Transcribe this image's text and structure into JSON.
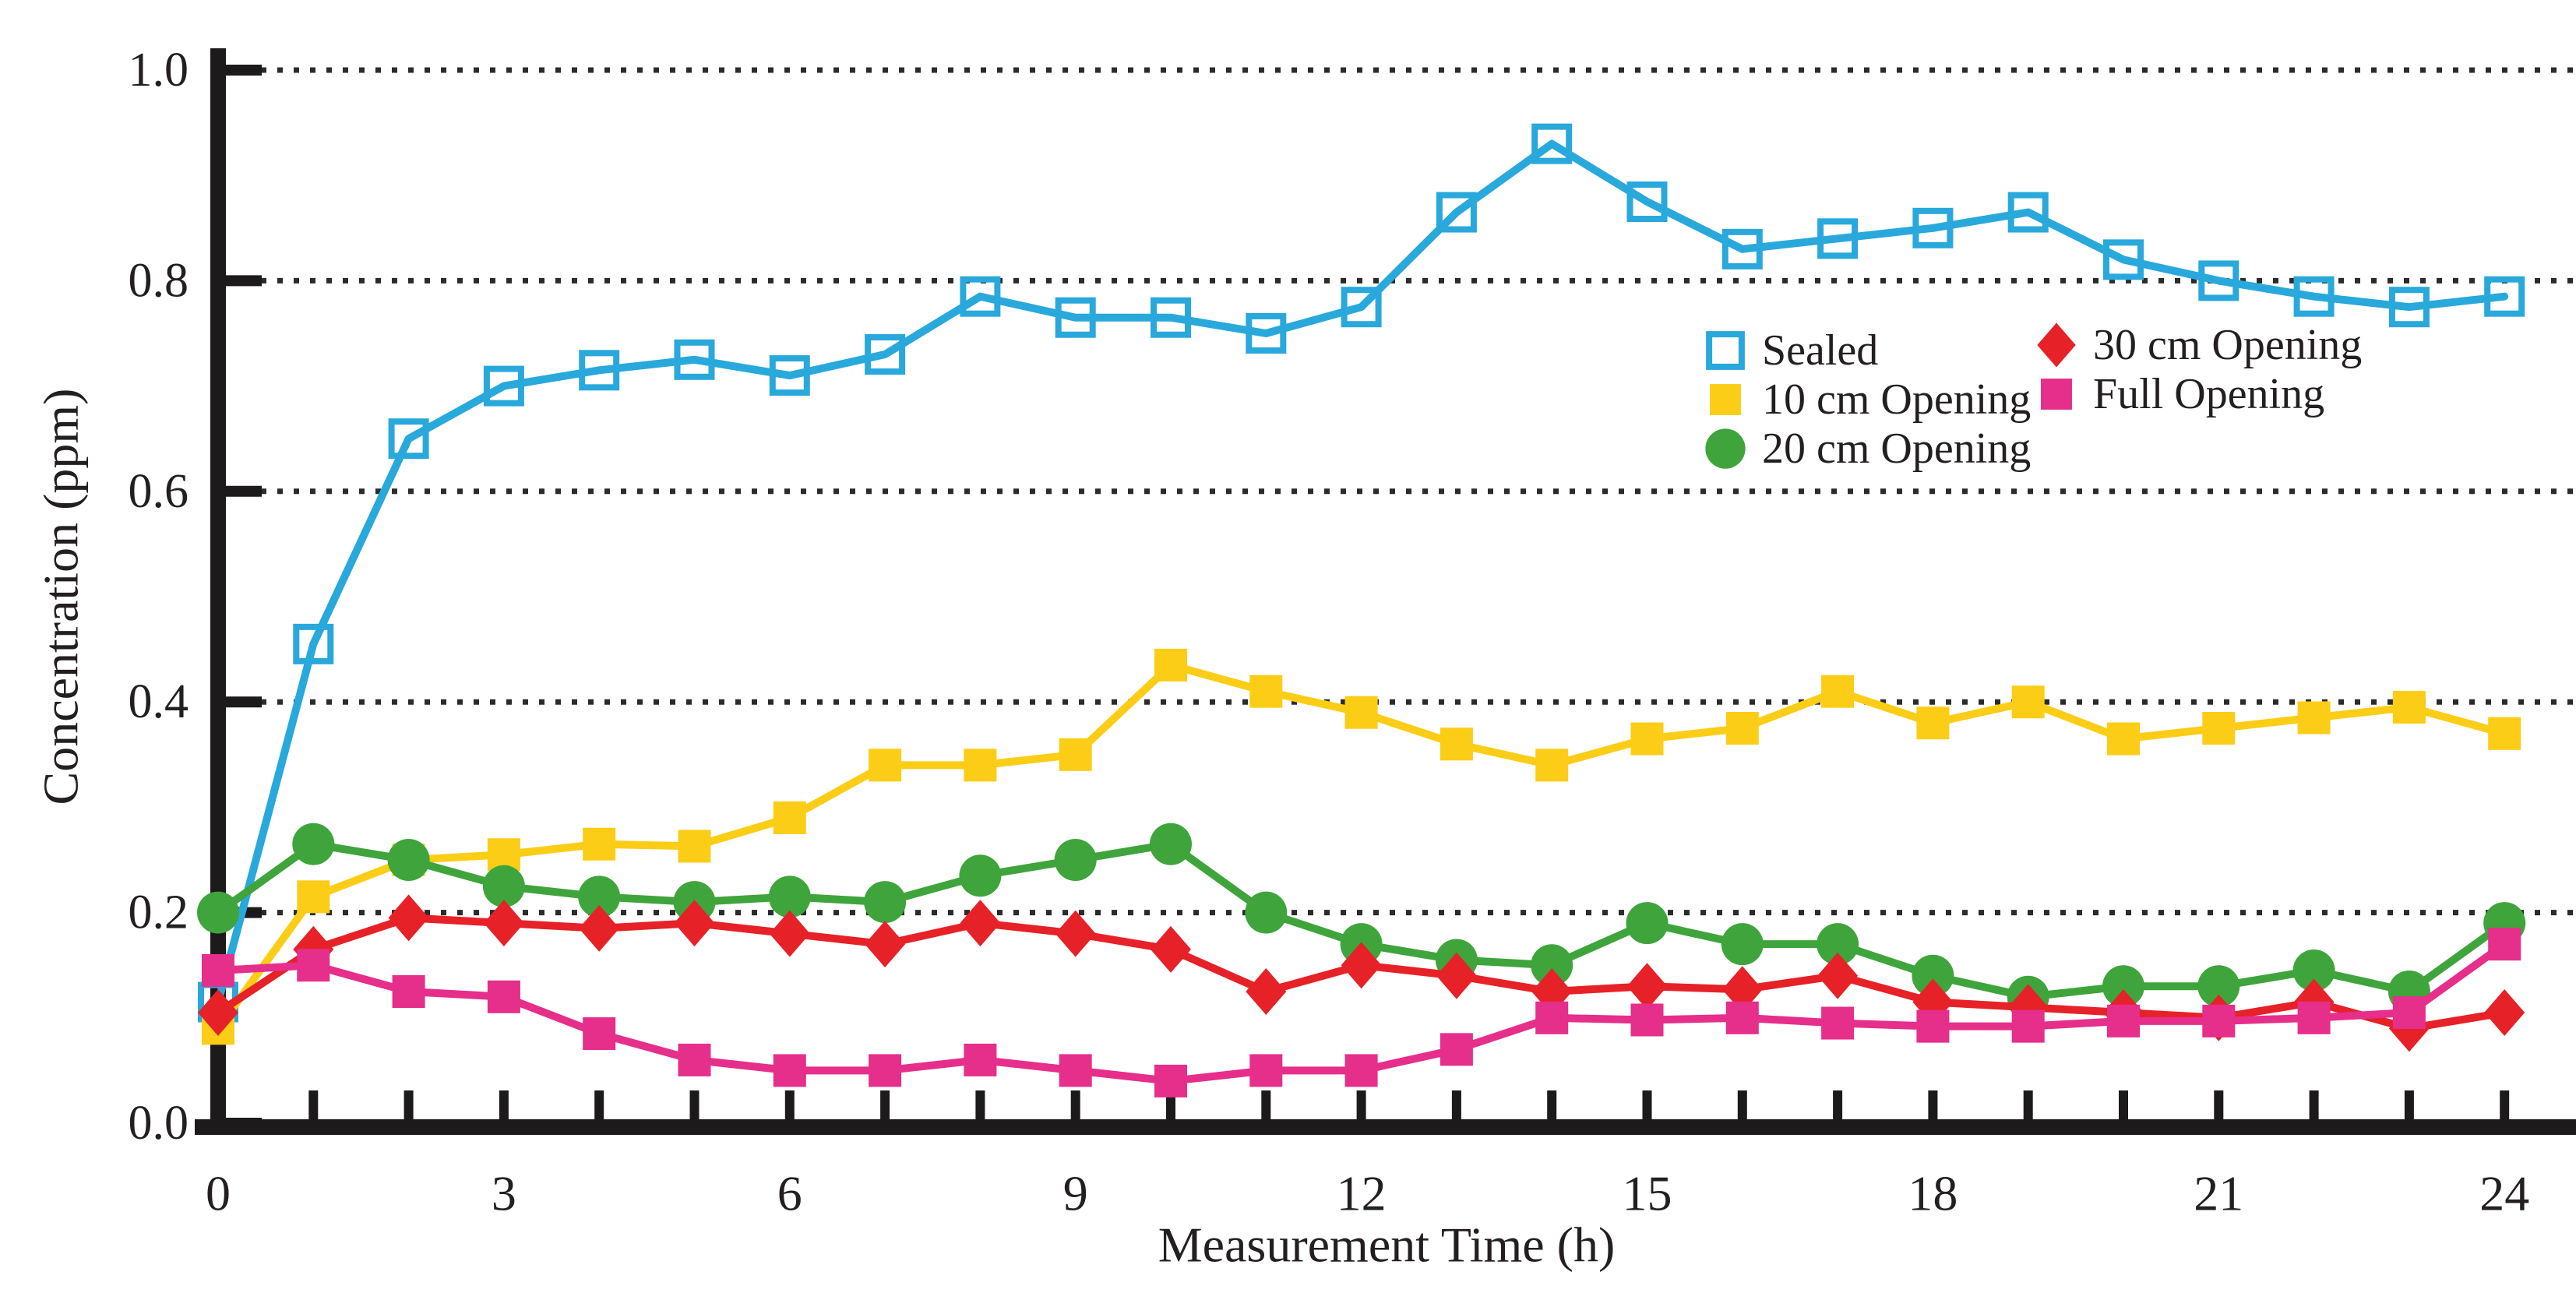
{
  "figure": {
    "background": "#ffffff",
    "axis_color": "#1C1A1B",
    "gridline_color": "#2B2B2B",
    "text_color": "#231F20"
  },
  "chart_data": {
    "type": "line",
    "title": "",
    "xlabel": "Measurement Time (h)",
    "ylabel": "Concentration (ppm)",
    "xlim": [
      0,
      24
    ],
    "ylim": [
      0.0,
      1.0
    ],
    "x_labeled_ticks": [
      0,
      3,
      6,
      9,
      12,
      15,
      18,
      21,
      24
    ],
    "x_minor_tick_step": 1,
    "y_ticks": [
      0.0,
      0.2,
      0.4,
      0.6,
      0.8,
      1.0
    ],
    "y_tick_labels": [
      "0.0",
      "0.2",
      "0.4",
      "0.6",
      "0.8",
      "1.0"
    ],
    "grid": "horizontal-dotted",
    "legend_position": "inside-upper-right",
    "x": [
      0,
      1,
      2,
      3,
      4,
      5,
      6,
      7,
      8,
      9,
      10,
      11,
      12,
      13,
      14,
      15,
      16,
      17,
      18,
      19,
      20,
      21,
      22,
      23,
      24
    ],
    "series": [
      {
        "name": "Sealed",
        "marker": "open-square",
        "color": "#29A8DC",
        "values": [
          0.115,
          0.455,
          0.65,
          0.7,
          0.715,
          0.725,
          0.71,
          0.73,
          0.785,
          0.765,
          0.765,
          0.75,
          0.775,
          0.865,
          0.93,
          0.875,
          0.83,
          0.84,
          0.85,
          0.865,
          0.82,
          0.8,
          0.785,
          0.775,
          0.785
        ]
      },
      {
        "name": "10 cm Opening",
        "marker": "square",
        "color": "#FBCD16",
        "values": [
          0.09,
          0.215,
          0.25,
          0.255,
          0.265,
          0.263,
          0.29,
          0.34,
          0.34,
          0.35,
          0.435,
          0.41,
          0.39,
          0.36,
          0.34,
          0.365,
          0.375,
          0.41,
          0.38,
          0.4,
          0.365,
          0.375,
          0.385,
          0.395,
          0.37
        ]
      },
      {
        "name": "20 cm Opening",
        "marker": "circle",
        "color": "#3FA43C",
        "values": [
          0.2,
          0.265,
          0.25,
          0.225,
          0.215,
          0.21,
          0.215,
          0.21,
          0.235,
          0.25,
          0.265,
          0.2,
          0.17,
          0.155,
          0.15,
          0.19,
          0.17,
          0.17,
          0.14,
          0.12,
          0.13,
          0.13,
          0.145,
          0.125,
          0.19
        ]
      },
      {
        "name": "30 cm Opening",
        "marker": "diamond",
        "color": "#E62128",
        "values": [
          0.105,
          0.165,
          0.195,
          0.19,
          0.185,
          0.19,
          0.18,
          0.17,
          0.19,
          0.18,
          0.165,
          0.125,
          0.15,
          0.14,
          0.125,
          0.13,
          0.127,
          0.14,
          0.115,
          0.11,
          0.105,
          0.1,
          0.115,
          0.09,
          0.105
        ]
      },
      {
        "name": "Full Opening",
        "marker": "square",
        "color": "#E62E8B",
        "values": [
          0.145,
          0.15,
          0.125,
          0.12,
          0.085,
          0.06,
          0.05,
          0.05,
          0.06,
          0.05,
          0.04,
          0.05,
          0.05,
          0.07,
          0.1,
          0.098,
          0.1,
          0.095,
          0.092,
          0.092,
          0.097,
          0.097,
          0.1,
          0.105,
          0.17
        ]
      }
    ]
  }
}
